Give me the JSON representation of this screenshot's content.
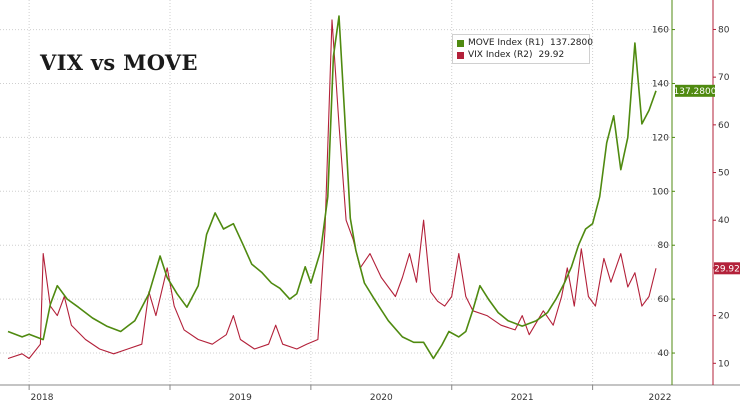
{
  "title": "VIX vs MOVE",
  "legend": [
    {
      "name": "MOVE Index (R1)",
      "value": "137.2800",
      "color": "#4f8a10"
    },
    {
      "name": "VIX Index (R2)",
      "value": "29.92",
      "color": "#b3213a"
    }
  ],
  "chart_data": {
    "type": "line",
    "title": "VIX vs MOVE",
    "x_tick_labels": [
      "2018",
      "2019",
      "2020",
      "2021",
      "2022"
    ],
    "x_range": [
      2017.85,
      2022.45
    ],
    "grid": true,
    "legend_placement": "top-right",
    "axes": {
      "r1": {
        "ticks": [
          40,
          60,
          80,
          100,
          120,
          140,
          160
        ],
        "range": [
          30,
          168
        ]
      },
      "r2": {
        "ticks": [
          10,
          20,
          30,
          40,
          50,
          60,
          70,
          80
        ],
        "range": [
          6.5,
          84.5
        ]
      }
    },
    "series": [
      {
        "name": "MOVE Index (R1)",
        "axis": "r1",
        "color": "#4f8a10",
        "last_value_label": "137.2800",
        "points": [
          [
            2017.85,
            48
          ],
          [
            2017.95,
            46
          ],
          [
            2018.0,
            47
          ],
          [
            2018.1,
            45
          ],
          [
            2018.15,
            58
          ],
          [
            2018.2,
            65
          ],
          [
            2018.27,
            60
          ],
          [
            2018.35,
            57
          ],
          [
            2018.45,
            53
          ],
          [
            2018.55,
            50
          ],
          [
            2018.65,
            48
          ],
          [
            2018.75,
            52
          ],
          [
            2018.85,
            62
          ],
          [
            2018.93,
            76
          ],
          [
            2018.98,
            68
          ],
          [
            2019.05,
            62
          ],
          [
            2019.12,
            57
          ],
          [
            2019.2,
            65
          ],
          [
            2019.26,
            84
          ],
          [
            2019.32,
            92
          ],
          [
            2019.38,
            86
          ],
          [
            2019.45,
            88
          ],
          [
            2019.52,
            80
          ],
          [
            2019.58,
            73
          ],
          [
            2019.65,
            70
          ],
          [
            2019.72,
            66
          ],
          [
            2019.78,
            64
          ],
          [
            2019.85,
            60
          ],
          [
            2019.9,
            62
          ],
          [
            2019.96,
            72
          ],
          [
            2020.0,
            66
          ],
          [
            2020.07,
            78
          ],
          [
            2020.12,
            98
          ],
          [
            2020.16,
            150
          ],
          [
            2020.2,
            165
          ],
          [
            2020.24,
            128
          ],
          [
            2020.28,
            90
          ],
          [
            2020.32,
            78
          ],
          [
            2020.38,
            66
          ],
          [
            2020.45,
            60
          ],
          [
            2020.55,
            52
          ],
          [
            2020.65,
            46
          ],
          [
            2020.73,
            44
          ],
          [
            2020.8,
            44
          ],
          [
            2020.87,
            38
          ],
          [
            2020.93,
            43
          ],
          [
            2020.98,
            48
          ],
          [
            2021.05,
            46
          ],
          [
            2021.1,
            48
          ],
          [
            2021.15,
            56
          ],
          [
            2021.2,
            65
          ],
          [
            2021.26,
            60
          ],
          [
            2021.33,
            55
          ],
          [
            2021.4,
            52
          ],
          [
            2021.5,
            50
          ],
          [
            2021.6,
            52
          ],
          [
            2021.68,
            55
          ],
          [
            2021.74,
            60
          ],
          [
            2021.8,
            66
          ],
          [
            2021.85,
            72
          ],
          [
            2021.9,
            80
          ],
          [
            2021.95,
            86
          ],
          [
            2022.0,
            88
          ],
          [
            2022.05,
            98
          ],
          [
            2022.1,
            118
          ],
          [
            2022.15,
            128
          ],
          [
            2022.2,
            108
          ],
          [
            2022.25,
            120
          ],
          [
            2022.3,
            155
          ],
          [
            2022.35,
            125
          ],
          [
            2022.4,
            130
          ],
          [
            2022.45,
            137.28
          ]
        ]
      },
      {
        "name": "VIX Index (R2)",
        "axis": "r2",
        "color": "#b3213a",
        "last_value_label": "29.92",
        "points": [
          [
            2017.85,
            11
          ],
          [
            2017.95,
            12
          ],
          [
            2018.0,
            11
          ],
          [
            2018.08,
            14
          ],
          [
            2018.1,
            33
          ],
          [
            2018.15,
            22
          ],
          [
            2018.2,
            20
          ],
          [
            2018.25,
            24
          ],
          [
            2018.3,
            18
          ],
          [
            2018.4,
            15
          ],
          [
            2018.5,
            13
          ],
          [
            2018.6,
            12
          ],
          [
            2018.7,
            13
          ],
          [
            2018.8,
            14
          ],
          [
            2018.85,
            25
          ],
          [
            2018.9,
            20
          ],
          [
            2018.98,
            30
          ],
          [
            2019.03,
            22
          ],
          [
            2019.1,
            17
          ],
          [
            2019.2,
            15
          ],
          [
            2019.3,
            14
          ],
          [
            2019.4,
            16
          ],
          [
            2019.45,
            20
          ],
          [
            2019.5,
            15
          ],
          [
            2019.6,
            13
          ],
          [
            2019.7,
            14
          ],
          [
            2019.75,
            18
          ],
          [
            2019.8,
            14
          ],
          [
            2019.9,
            13
          ],
          [
            2019.97,
            14
          ],
          [
            2020.05,
            15
          ],
          [
            2020.1,
            38
          ],
          [
            2020.15,
            82
          ],
          [
            2020.2,
            60
          ],
          [
            2020.25,
            40
          ],
          [
            2020.3,
            36
          ],
          [
            2020.35,
            30
          ],
          [
            2020.42,
            33
          ],
          [
            2020.5,
            28
          ],
          [
            2020.55,
            26
          ],
          [
            2020.6,
            24
          ],
          [
            2020.65,
            28
          ],
          [
            2020.7,
            33
          ],
          [
            2020.75,
            27
          ],
          [
            2020.8,
            40
          ],
          [
            2020.85,
            25
          ],
          [
            2020.9,
            23
          ],
          [
            2020.95,
            22
          ],
          [
            2021.0,
            24
          ],
          [
            2021.05,
            33
          ],
          [
            2021.1,
            24
          ],
          [
            2021.15,
            21
          ],
          [
            2021.25,
            20
          ],
          [
            2021.35,
            18
          ],
          [
            2021.45,
            17
          ],
          [
            2021.5,
            20
          ],
          [
            2021.55,
            16
          ],
          [
            2021.65,
            21
          ],
          [
            2021.72,
            18
          ],
          [
            2021.78,
            24
          ],
          [
            2021.82,
            30
          ],
          [
            2021.87,
            22
          ],
          [
            2021.92,
            34
          ],
          [
            2021.97,
            24
          ],
          [
            2022.02,
            22
          ],
          [
            2022.08,
            32
          ],
          [
            2022.13,
            27
          ],
          [
            2022.2,
            33
          ],
          [
            2022.25,
            26
          ],
          [
            2022.3,
            29
          ],
          [
            2022.35,
            22
          ],
          [
            2022.4,
            24
          ],
          [
            2022.45,
            29.92
          ]
        ]
      }
    ]
  }
}
